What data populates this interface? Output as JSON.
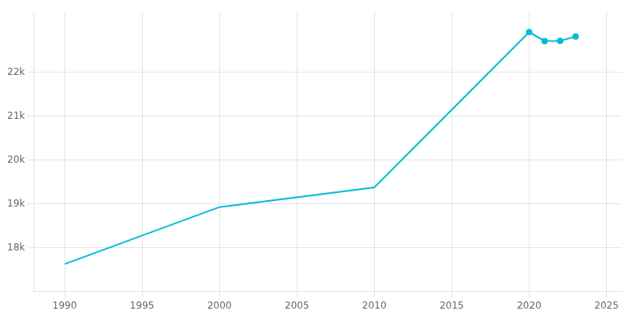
{
  "chart_data": {
    "type": "line",
    "x": [
      1990,
      2000,
      2010,
      2020,
      2021,
      2022,
      2023
    ],
    "series": [
      {
        "type": "line",
        "color": "#00bcd4",
        "values": [
          17628,
          18928,
          19376,
          22922,
          22719,
          22724,
          22820
        ]
      },
      {
        "type": "scatter",
        "color": "#00bcd4",
        "marker": "circle",
        "values": [
          null,
          null,
          null,
          22922,
          22719,
          22724,
          22820
        ]
      }
    ],
    "xlim": [
      1988,
      2026
    ],
    "xticks": [
      1990,
      1995,
      2000,
      2005,
      2010,
      2015,
      2020,
      2025
    ],
    "ylim": [
      17000,
      23400
    ],
    "yticks": [
      {
        "value": 18000,
        "label": "18k"
      },
      {
        "value": 19000,
        "label": "19k"
      },
      {
        "value": 20000,
        "label": "20k"
      },
      {
        "value": 21000,
        "label": "21k"
      },
      {
        "value": 22000,
        "label": "22k"
      }
    ],
    "grid": true
  }
}
